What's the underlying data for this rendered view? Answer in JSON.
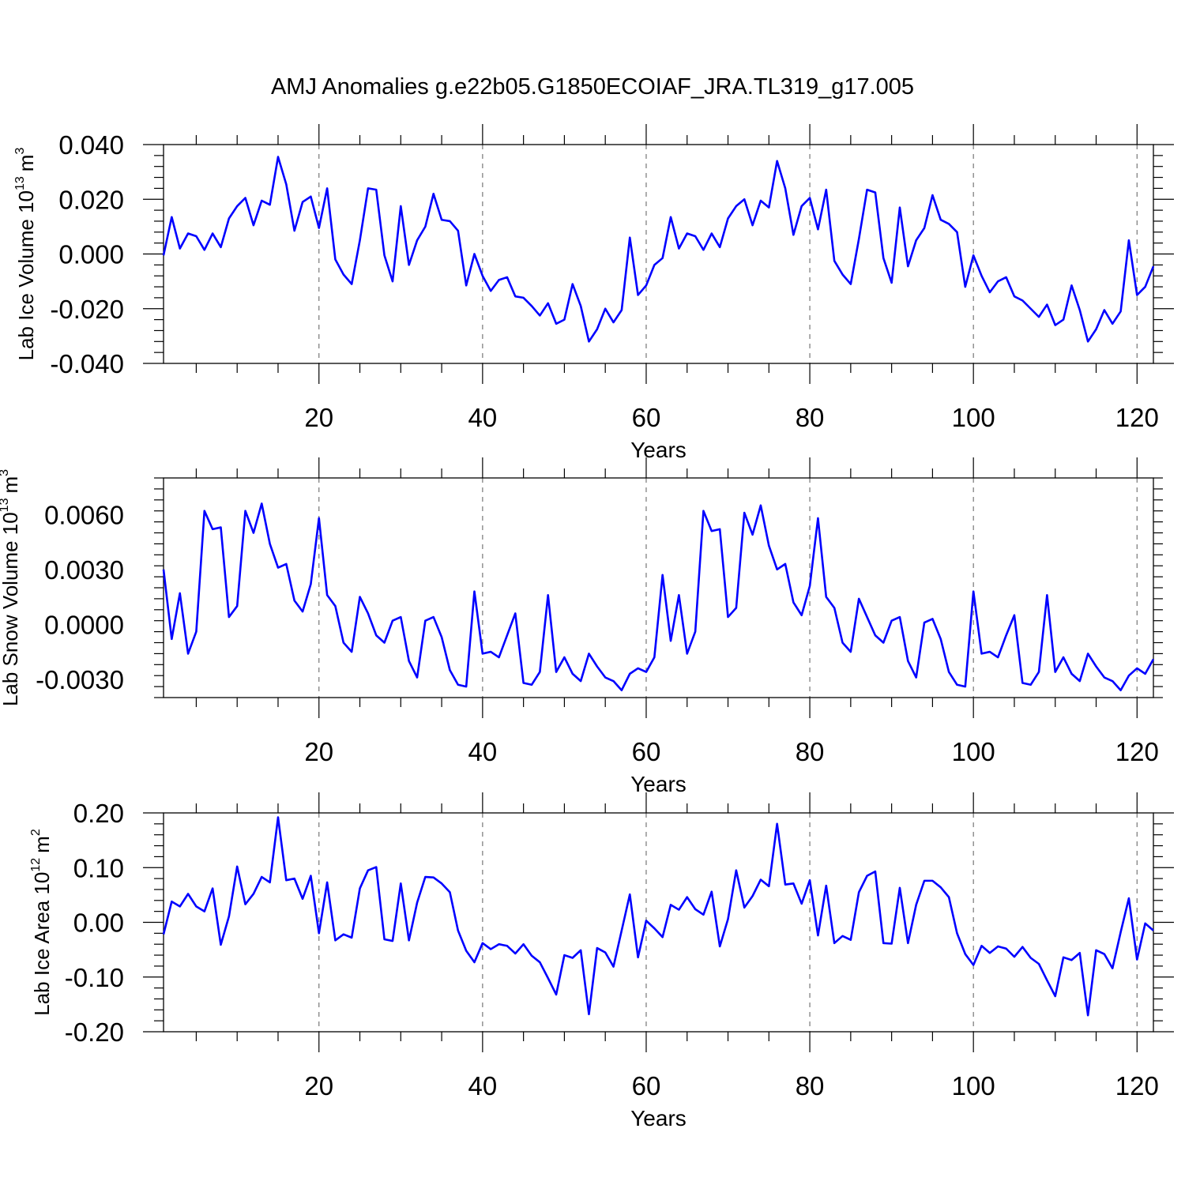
{
  "title": "AMJ Anomalies g.e22b05.G1850ECOIAF_JRA.TL319_g17.005",
  "line_color": "#0000ff",
  "chart_data": [
    {
      "type": "line",
      "ylabel_main": "Lab Ice Volume 10",
      "ylabel_exp": "13",
      "ylabel_unit": "m",
      "ylabel_unit_exp": "3",
      "xlabel": "Years",
      "xlim": [
        1,
        122
      ],
      "ylim": [
        -0.04,
        0.04
      ],
      "yticks": [
        -0.04,
        -0.02,
        0.0,
        0.02,
        0.04
      ],
      "yticklabels": [
        "-0.040",
        "-0.020",
        "0.000",
        "0.020",
        "0.040"
      ],
      "xticks": [
        20,
        40,
        60,
        80,
        100,
        120
      ],
      "xticklabels": [
        "20",
        "40",
        "60",
        "80",
        "100",
        "120"
      ],
      "x_start": 1,
      "values": [
        -0.0005,
        0.0135,
        0.002,
        0.0075,
        0.0065,
        0.0015,
        0.0075,
        0.0025,
        0.013,
        0.0175,
        0.0205,
        0.0105,
        0.0195,
        0.018,
        0.0355,
        0.0255,
        0.0085,
        0.019,
        0.021,
        0.0095,
        0.024,
        -0.002,
        -0.0075,
        -0.011,
        0.005,
        0.024,
        0.0235,
        -0.0005,
        -0.01,
        0.0175,
        -0.004,
        0.005,
        0.01,
        0.022,
        0.0125,
        0.012,
        0.0085,
        -0.0115,
        0.0,
        -0.008,
        -0.0135,
        -0.0095,
        -0.0085,
        -0.0155,
        -0.016,
        -0.019,
        -0.0225,
        -0.018,
        -0.0255,
        -0.024,
        -0.011,
        -0.019,
        -0.032,
        -0.0275,
        -0.02,
        -0.025,
        -0.0205,
        0.006,
        -0.015,
        -0.0115,
        -0.004,
        -0.0015,
        0.0135,
        0.002,
        0.0075,
        0.0065,
        0.0015,
        0.0075,
        0.0025,
        0.013,
        0.0175,
        0.02,
        0.0105,
        0.0195,
        0.017,
        0.034,
        0.024,
        0.007,
        0.0175,
        0.0205,
        0.009,
        0.0235,
        -0.0025,
        -0.0075,
        -0.011,
        0.0055,
        0.0235,
        0.0225,
        -0.0015,
        -0.0105,
        0.017,
        -0.0045,
        0.005,
        0.0095,
        0.0215,
        0.0125,
        0.011,
        0.008,
        -0.012,
        -0.0005,
        -0.008,
        -0.014,
        -0.01,
        -0.0085,
        -0.0155,
        -0.017,
        -0.02,
        -0.023,
        -0.0185,
        -0.026,
        -0.024,
        -0.0115,
        -0.0205,
        -0.032,
        -0.0275,
        -0.0205,
        -0.0255,
        -0.021,
        0.005,
        -0.015,
        -0.012,
        -0.0045
      ]
    },
    {
      "type": "line",
      "ylabel_main": "Lab Snow Volume 10",
      "ylabel_exp": "13",
      "ylabel_unit": "m",
      "ylabel_unit_exp": "3",
      "xlabel": "Years",
      "xlim": [
        1,
        122
      ],
      "ylim": [
        -0.004,
        0.008
      ],
      "yticks": [
        -0.003,
        0.0,
        0.003,
        0.006
      ],
      "yticklabels": [
        "-0.0030",
        "0.0000",
        "0.0030",
        "0.0060"
      ],
      "xticks": [
        20,
        40,
        60,
        80,
        100,
        120
      ],
      "xticklabels": [
        "20",
        "40",
        "60",
        "80",
        "100",
        "120"
      ],
      "x_start": 1,
      "values": [
        0.003,
        -0.0008,
        0.0017,
        -0.0016,
        -0.0004,
        0.0062,
        0.0052,
        0.0053,
        0.0004,
        0.001,
        0.0062,
        0.005,
        0.0066,
        0.0044,
        0.0031,
        0.0033,
        0.0013,
        0.0007,
        0.0022,
        0.0058,
        0.0016,
        0.001,
        -0.001,
        -0.0015,
        0.0015,
        0.0006,
        -0.0006,
        -0.001,
        0.0002,
        0.0004,
        -0.002,
        -0.0029,
        0.0002,
        0.0004,
        -0.0007,
        -0.0025,
        -0.0033,
        -0.0034,
        0.0018,
        -0.0016,
        -0.0015,
        -0.0018,
        -0.0006,
        0.0006,
        -0.0032,
        -0.0033,
        -0.0026,
        0.0016,
        -0.0026,
        -0.0018,
        -0.0027,
        -0.0031,
        -0.0016,
        -0.0023,
        -0.0029,
        -0.0031,
        -0.0036,
        -0.0027,
        -0.0024,
        -0.0026,
        -0.0018,
        0.0027,
        -0.0009,
        0.0016,
        -0.0016,
        -0.0004,
        0.0062,
        0.0051,
        0.0052,
        0.0004,
        0.0009,
        0.0061,
        0.0049,
        0.0065,
        0.0043,
        0.003,
        0.0033,
        0.0012,
        0.0005,
        0.0021,
        0.0058,
        0.0015,
        0.0009,
        -0.001,
        -0.0015,
        0.0014,
        0.0004,
        -0.0006,
        -0.001,
        0.0002,
        0.0004,
        -0.002,
        -0.0029,
        0.0001,
        0.0003,
        -0.0008,
        -0.0026,
        -0.0033,
        -0.0034,
        0.0018,
        -0.0016,
        -0.0015,
        -0.0018,
        -0.0006,
        0.0005,
        -0.0032,
        -0.0033,
        -0.0026,
        0.0016,
        -0.0026,
        -0.0018,
        -0.0027,
        -0.0031,
        -0.0016,
        -0.0023,
        -0.0029,
        -0.0031,
        -0.0036,
        -0.0028,
        -0.0024,
        -0.0027,
        -0.0019
      ]
    },
    {
      "type": "line",
      "ylabel_main": "Lab Ice Area 10",
      "ylabel_exp": "12",
      "ylabel_unit": "m",
      "ylabel_unit_exp": "2",
      "xlabel": "Years",
      "xlim": [
        1,
        122
      ],
      "ylim": [
        -0.2,
        0.2
      ],
      "yticks": [
        -0.2,
        -0.1,
        0.0,
        0.1,
        0.2
      ],
      "yticklabels": [
        "-0.20",
        "-0.10",
        "0.00",
        "0.10",
        "0.20"
      ],
      "xticks": [
        20,
        40,
        60,
        80,
        100,
        120
      ],
      "xticklabels": [
        "20",
        "40",
        "60",
        "80",
        "100",
        "120"
      ],
      "x_start": 1,
      "values": [
        -0.022,
        0.038,
        0.029,
        0.052,
        0.029,
        0.02,
        0.062,
        -0.041,
        0.011,
        0.102,
        0.033,
        0.052,
        0.083,
        0.073,
        0.192,
        0.077,
        0.08,
        0.043,
        0.085,
        -0.02,
        0.073,
        -0.033,
        -0.022,
        -0.028,
        0.062,
        0.095,
        0.101,
        -0.031,
        -0.034,
        0.071,
        -0.033,
        0.036,
        0.083,
        0.082,
        0.071,
        0.055,
        -0.015,
        -0.052,
        -0.073,
        -0.038,
        -0.049,
        -0.04,
        -0.043,
        -0.057,
        -0.04,
        -0.061,
        -0.073,
        -0.102,
        -0.132,
        -0.06,
        -0.065,
        -0.051,
        -0.168,
        -0.047,
        -0.055,
        -0.081,
        -0.015,
        0.051,
        -0.064,
        0.003,
        -0.011,
        -0.027,
        0.032,
        0.023,
        0.046,
        0.024,
        0.014,
        0.056,
        -0.044,
        0.006,
        0.095,
        0.027,
        0.048,
        0.078,
        0.066,
        0.18,
        0.069,
        0.071,
        0.034,
        0.077,
        -0.024,
        0.067,
        -0.038,
        -0.025,
        -0.032,
        0.055,
        0.085,
        0.093,
        -0.038,
        -0.039,
        0.063,
        -0.038,
        0.032,
        0.076,
        0.076,
        0.064,
        0.046,
        -0.02,
        -0.058,
        -0.078,
        -0.043,
        -0.056,
        -0.044,
        -0.048,
        -0.063,
        -0.045,
        -0.065,
        -0.076,
        -0.106,
        -0.135,
        -0.064,
        -0.069,
        -0.056,
        -0.17,
        -0.051,
        -0.058,
        -0.084,
        -0.018,
        0.044,
        -0.068,
        -0.002,
        -0.015
      ]
    }
  ]
}
